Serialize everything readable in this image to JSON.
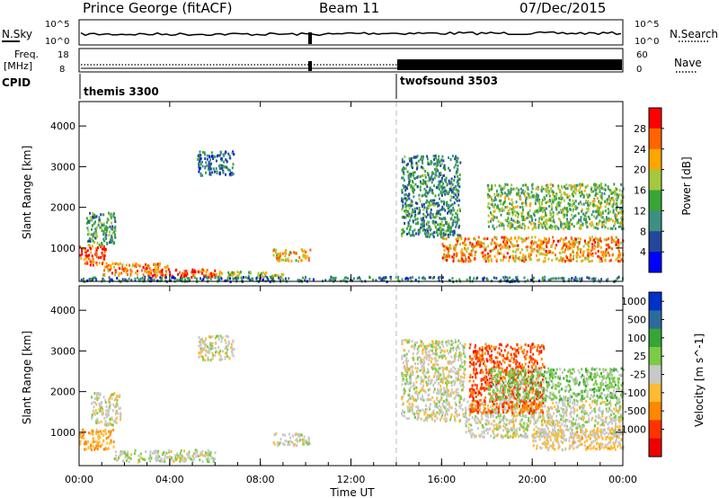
{
  "header": {
    "station": "Prince George (fitACF)",
    "beam": "Beam 11",
    "date": "07/Dec/2015"
  },
  "strip_nsky": {
    "left_label": "N.Sky",
    "right_label": "N.Search",
    "left_ticks": [
      "10^5",
      "10^0"
    ],
    "right_ticks": [
      "10^5",
      "10^0"
    ]
  },
  "strip_freq": {
    "left_label": "Freq.",
    "left_unit": "[MHz]",
    "right_label": "Nave",
    "left_ticks": [
      "18",
      "8"
    ],
    "right_ticks": [
      "60",
      "0"
    ]
  },
  "strip_cpid": {
    "label": "CPID",
    "segments": [
      {
        "name": "themis 3300",
        "start_hour": 0
      },
      {
        "name": "twofsound 3503",
        "start_hour": 14
      }
    ]
  },
  "x_axis": {
    "label": "Time UT",
    "ticks": [
      "00:00",
      "04:00",
      "08:00",
      "12:00",
      "16:00",
      "20:00",
      "00:00"
    ],
    "range_hours": [
      0,
      24
    ]
  },
  "colors": {
    "power_scale": [
      "#0000ff",
      "#23479a",
      "#3d8f80",
      "#37a537",
      "#a5c83c",
      "#ffa500",
      "#ff6400",
      "#ff0000"
    ],
    "velocity_scale": [
      "#0032c8",
      "#2e6b9c",
      "#37a537",
      "#7acb46",
      "#c8c8c8",
      "#ffbb33",
      "#ff8800",
      "#ff3300",
      "#ee0000"
    ]
  },
  "chart_data": [
    {
      "type": "heatmap",
      "name": "power",
      "ylabel": "Slant Range [km]",
      "ylim": [
        180,
        4600
      ],
      "yticks": [
        1000,
        2000,
        3000,
        4000
      ],
      "colorbar": {
        "label": "Power [dB]",
        "ticks": [
          "4",
          "8",
          "12",
          "16",
          "20",
          "24",
          "28"
        ],
        "range": [
          0,
          30
        ]
      },
      "regions": [
        {
          "t": [
            0.0,
            1.2
          ],
          "r": [
            600,
            1100
          ],
          "value": 26
        },
        {
          "t": [
            0.3,
            1.6
          ],
          "r": [
            1100,
            1900
          ],
          "value": 12
        },
        {
          "t": [
            1.0,
            4.0
          ],
          "r": [
            350,
            650
          ],
          "value": 22
        },
        {
          "t": [
            3.0,
            6.0
          ],
          "r": [
            300,
            500
          ],
          "value": 26
        },
        {
          "t": [
            6.0,
            9.0
          ],
          "r": [
            300,
            450
          ],
          "value": 16
        },
        {
          "t": [
            8.5,
            10.2
          ],
          "r": [
            700,
            1000
          ],
          "value": 20
        },
        {
          "t": [
            5.2,
            6.8
          ],
          "r": [
            2800,
            3400
          ],
          "value": 8
        },
        {
          "t": [
            14.2,
            16.8
          ],
          "r": [
            1300,
            3300
          ],
          "value": 10
        },
        {
          "t": [
            16.0,
            24.0
          ],
          "r": [
            700,
            1300
          ],
          "value": 22
        },
        {
          "t": [
            18.0,
            24.0
          ],
          "r": [
            1500,
            2600
          ],
          "value": 14
        },
        {
          "t": [
            0.0,
            24.0
          ],
          "r": [
            200,
            320
          ],
          "value": 8
        }
      ]
    },
    {
      "type": "heatmap",
      "name": "velocity",
      "ylabel": "Slant Range [km]",
      "ylim": [
        180,
        4600
      ],
      "yticks": [
        1000,
        2000,
        3000,
        4000
      ],
      "colorbar": {
        "label": "Velocity [m s^-1]",
        "ticks": [
          "1000",
          "500",
          "100",
          "25",
          "-25",
          "-100",
          "-500",
          "-1000"
        ],
        "range": [
          -1000,
          1000
        ]
      },
      "regions": [
        {
          "t": [
            0.0,
            1.5
          ],
          "r": [
            600,
            1100
          ],
          "value": -300
        },
        {
          "t": [
            0.5,
            1.8
          ],
          "r": [
            1200,
            2000
          ],
          "value": 0
        },
        {
          "t": [
            1.5,
            6.0
          ],
          "r": [
            300,
            600
          ],
          "value": 60
        },
        {
          "t": [
            5.2,
            6.8
          ],
          "r": [
            2800,
            3400
          ],
          "value": 0
        },
        {
          "t": [
            8.5,
            10.2
          ],
          "r": [
            700,
            1000
          ],
          "value": 0
        },
        {
          "t": [
            14.2,
            17.0
          ],
          "r": [
            1300,
            3300
          ],
          "value": 0
        },
        {
          "t": [
            17.0,
            24.0
          ],
          "r": [
            900,
            1800
          ],
          "value": 0
        },
        {
          "t": [
            17.2,
            20.5
          ],
          "r": [
            1500,
            3200
          ],
          "value": -600
        },
        {
          "t": [
            20.0,
            24.0
          ],
          "r": [
            600,
            1100
          ],
          "value": -150
        },
        {
          "t": [
            18.0,
            24.0
          ],
          "r": [
            1800,
            2600
          ],
          "value": 200
        }
      ]
    }
  ]
}
